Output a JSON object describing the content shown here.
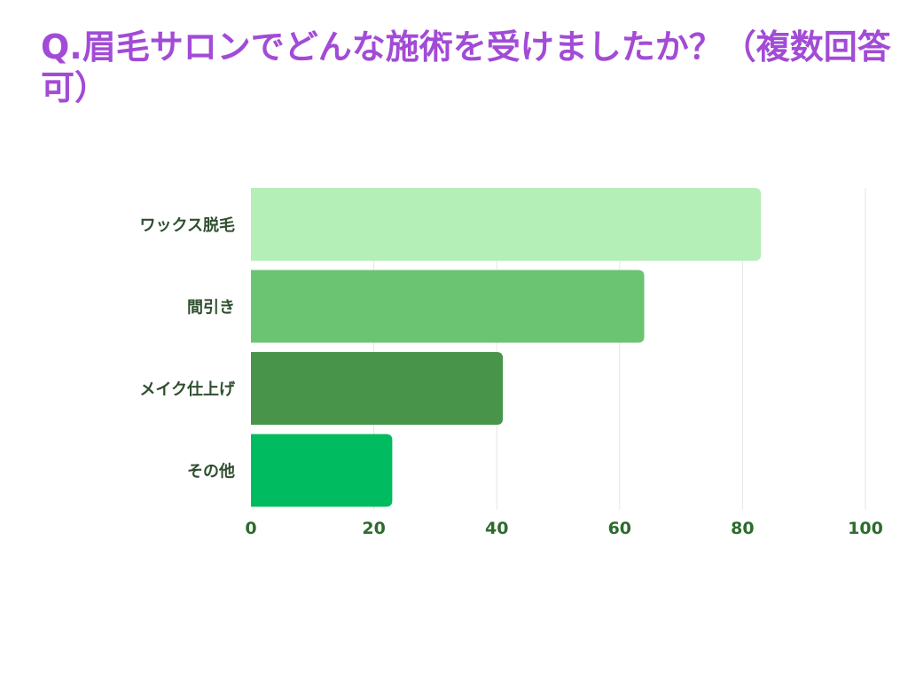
{
  "title": "Q.眉毛サロンでどんな施術を受けましたか？（複数回答可）",
  "colors": {
    "title": "#a24bd6",
    "label": "#2f4f2f",
    "tick": "#2e6b2e",
    "grid": "#e6e6e6",
    "bars": [
      "#b3efb6",
      "#6bc472",
      "#48944b",
      "#00bb5f"
    ]
  },
  "chart_data": {
    "type": "bar",
    "orientation": "horizontal",
    "title": "Q.眉毛サロンでどんな施術を受けましたか？（複数回答可）",
    "categories": [
      "ワックス脱毛",
      "間引き",
      "メイク仕上げ",
      "その他"
    ],
    "values": [
      83,
      64,
      41,
      23
    ],
    "xlim": [
      0,
      100
    ],
    "xticks": [
      0,
      20,
      40,
      60,
      80,
      100
    ],
    "xlabel": "",
    "ylabel": "",
    "grid": true,
    "legend": "none"
  }
}
